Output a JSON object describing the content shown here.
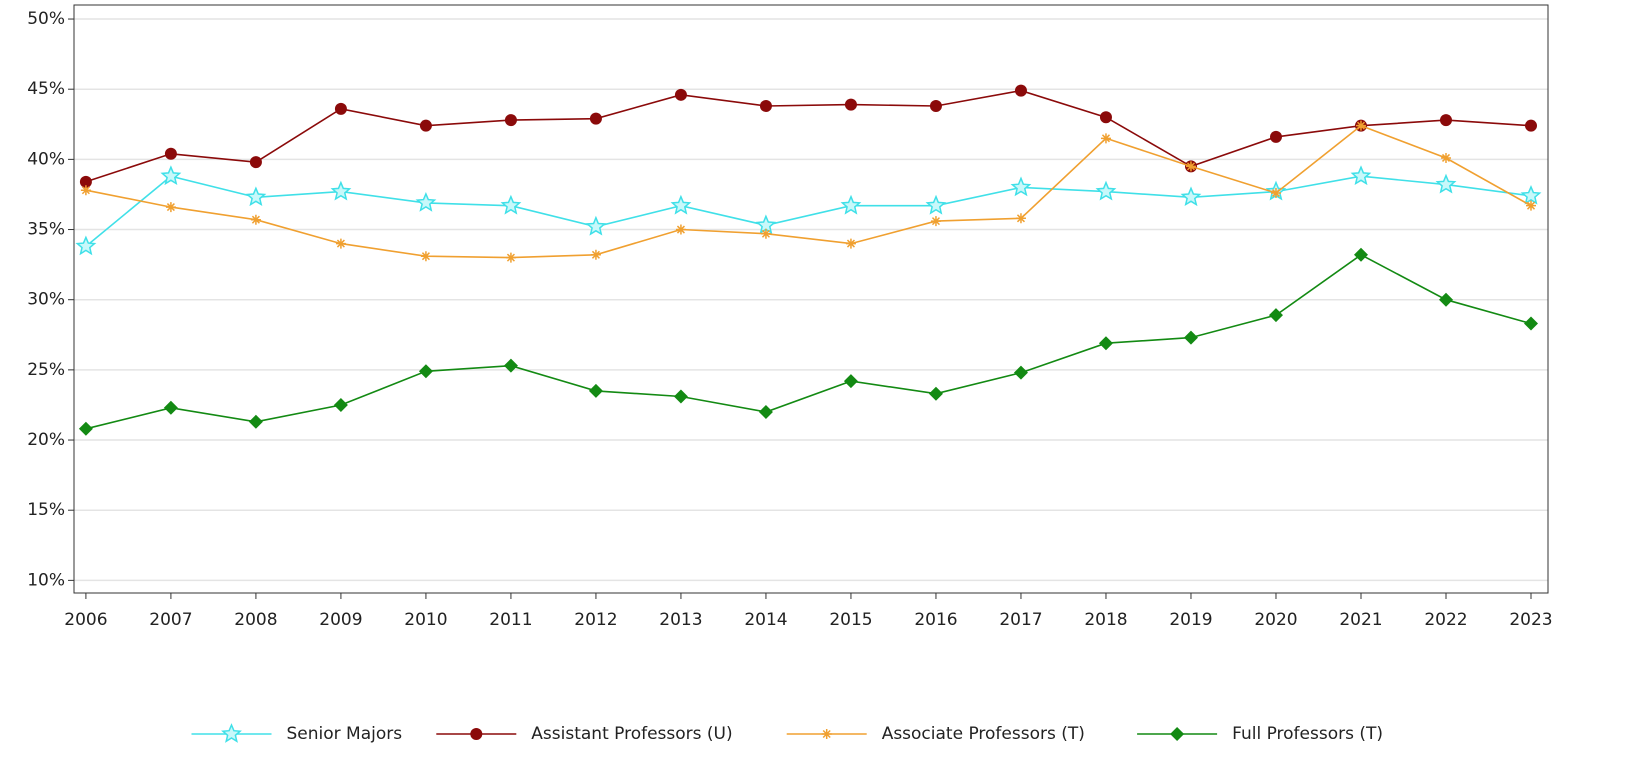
{
  "chart_data": {
    "type": "line",
    "x": [
      2006,
      2007,
      2008,
      2009,
      2010,
      2011,
      2012,
      2013,
      2014,
      2015,
      2016,
      2017,
      2018,
      2019,
      2020,
      2021,
      2022,
      2023
    ],
    "xlim": [
      2005.86,
      2023.2
    ],
    "xticks": [
      2006,
      2007,
      2008,
      2009,
      2010,
      2011,
      2012,
      2013,
      2014,
      2015,
      2016,
      2017,
      2018,
      2019,
      2020,
      2021,
      2022,
      2023
    ],
    "ylim": [
      9.1,
      51
    ],
    "yticks": [
      {
        "value": 10,
        "label": "10%"
      },
      {
        "value": 15,
        "label": "15%"
      },
      {
        "value": 20,
        "label": "20%"
      },
      {
        "value": 25,
        "label": "25%"
      },
      {
        "value": 30,
        "label": "30%"
      },
      {
        "value": 35,
        "label": "35%"
      },
      {
        "value": 40,
        "label": "40%"
      },
      {
        "value": 45,
        "label": "45%"
      },
      {
        "value": 50,
        "label": "50%"
      }
    ],
    "grid": true,
    "legend": "bottom",
    "series": [
      {
        "name": "Senior Majors",
        "color": "#40e0e8",
        "marker": "star",
        "values": [
          33.8,
          38.8,
          37.3,
          37.7,
          36.9,
          36.7,
          35.2,
          36.7,
          35.3,
          36.7,
          36.7,
          38.0,
          37.7,
          37.3,
          37.7,
          38.8,
          38.2,
          37.4
        ]
      },
      {
        "name": "Assistant Professors (U)",
        "color": "#8b0a0a",
        "marker": "circle",
        "values": [
          38.4,
          40.4,
          39.8,
          43.6,
          42.4,
          42.8,
          42.9,
          44.6,
          43.8,
          43.9,
          43.8,
          44.9,
          43.0,
          39.5,
          41.6,
          42.4,
          42.8,
          42.4
        ]
      },
      {
        "name": "Associate Professors (T)",
        "color": "#f0a030",
        "marker": "asterisk",
        "values": [
          37.8,
          36.6,
          35.7,
          34.0,
          33.1,
          33.0,
          33.2,
          35.0,
          34.7,
          34.0,
          35.6,
          35.8,
          41.5,
          39.5,
          37.6,
          42.4,
          40.1,
          36.7
        ]
      },
      {
        "name": "Full Professors (T)",
        "color": "#138a13",
        "marker": "diamond",
        "values": [
          20.8,
          22.3,
          21.3,
          22.5,
          24.9,
          25.3,
          23.5,
          23.1,
          22.0,
          24.2,
          23.3,
          24.8,
          26.9,
          27.3,
          28.9,
          33.2,
          30.0,
          28.3
        ]
      }
    ]
  }
}
